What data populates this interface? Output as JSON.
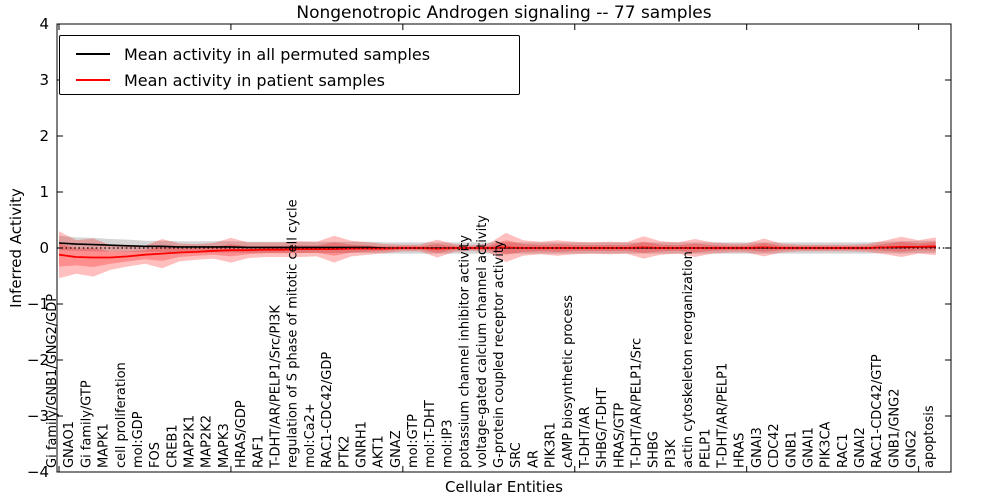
{
  "chart_data": {
    "type": "line",
    "title": "Nongenotropic Androgen signaling -- 77 samples",
    "xlabel": "Cellular Entities",
    "ylabel": "Inferred Activity",
    "ylim": [
      -4,
      4
    ],
    "ytick_labels": [
      "4",
      "3",
      "2",
      "1",
      "0",
      "−1",
      "−2",
      "−3",
      "−4"
    ],
    "ytick_values": [
      4,
      3,
      2,
      1,
      0,
      -1,
      -2,
      -3,
      -4
    ],
    "xtick_units": [
      0,
      10,
      20,
      30,
      40,
      50
    ],
    "grid": false,
    "legend_position": "upper left",
    "zero_line_style": "dotted",
    "categories": [
      "Gi family/GNB1/GNG2/GDP",
      "GNAO1",
      "Gi family/GTP",
      "MAPK1",
      "cell proliferation",
      "mol:GDP",
      "FOS",
      "CREB1",
      "MAP2K1",
      "MAP2K2",
      "MAPK3",
      "HRAS/GDP",
      "RAF1",
      "T-DHT/AR/PELP1/Src/PI3K",
      "regulation of S phase of mitotic cell cycle",
      "mol:Ca2+",
      "RAC1-CDC42/GDP",
      "PTK2",
      "GNRH1",
      "AKT1",
      "GNAZ",
      "mol:GTP",
      "mol:T-DHT",
      "mol:IP3",
      "potassium channel inhibitor activity",
      "voltage-gated calcium channel activity",
      "G-protein coupled receptor activity",
      "SRC",
      "AR",
      "PIK3R1",
      "cAMP biosynthetic process",
      "T-DHT/AR",
      "SHBG/T-DHT",
      "HRAS/GTP",
      "T-DHT/AR/PELP1/Src",
      "SHBG",
      "PI3K",
      "actin cytoskeleton reorganization",
      "PELP1",
      "T-DHT/AR/PELP1",
      "HRAS",
      "GNAI3",
      "CDC42",
      "GNB1",
      "GNAI1",
      "PIK3CA",
      "RAC1",
      "GNAI2",
      "RAC1-CDC42/GTP",
      "GNB1/GNG2",
      "GNG2",
      "apoptosis"
    ],
    "series": [
      {
        "name": "Mean activity in all permuted samples",
        "color": "#000000",
        "band_color": "#888888",
        "band_opacity": 0.35,
        "values": [
          0.09,
          0.07,
          0.06,
          0.05,
          0.04,
          0.03,
          0.03,
          0.02,
          0.02,
          0.02,
          0.02,
          0.01,
          0.01,
          0.01,
          0.01,
          0.01,
          0.01,
          0.01,
          0.01,
          0.0,
          0.0,
          0.0,
          0.0,
          0.0,
          0.0,
          0.0,
          0.0,
          0.0,
          0.0,
          0.0,
          0.0,
          0.0,
          0.0,
          0.0,
          0.0,
          0.0,
          0.0,
          0.0,
          0.0,
          0.0,
          0.0,
          0.0,
          0.0,
          0.0,
          0.0,
          0.0,
          0.0,
          0.0,
          0.01,
          0.01,
          0.02,
          0.02
        ],
        "band": [
          0.13,
          0.12,
          0.12,
          0.11,
          0.11,
          0.1,
          0.1,
          0.1,
          0.1,
          0.1,
          0.1,
          0.1,
          0.1,
          0.1,
          0.1,
          0.1,
          0.1,
          0.1,
          0.1,
          0.1,
          0.1,
          0.1,
          0.1,
          0.1,
          0.1,
          0.1,
          0.1,
          0.1,
          0.1,
          0.1,
          0.1,
          0.1,
          0.1,
          0.1,
          0.1,
          0.1,
          0.1,
          0.1,
          0.1,
          0.1,
          0.1,
          0.1,
          0.1,
          0.1,
          0.1,
          0.1,
          0.1,
          0.1,
          0.1,
          0.11,
          0.11,
          0.11
        ]
      },
      {
        "name": "Mean activity in patient samples",
        "color": "#ff0000",
        "band_color": "#ff0000",
        "band_opacity": 0.25,
        "band_inner_ratio": 0.5,
        "values": [
          -0.12,
          -0.16,
          -0.17,
          -0.17,
          -0.15,
          -0.12,
          -0.1,
          -0.08,
          -0.07,
          -0.05,
          -0.04,
          -0.04,
          -0.03,
          -0.03,
          -0.02,
          -0.02,
          -0.02,
          -0.01,
          -0.01,
          -0.01,
          0.0,
          0.0,
          -0.01,
          0.0,
          0.0,
          0.0,
          0.01,
          0.0,
          0.0,
          0.0,
          0.0,
          0.0,
          0.0,
          0.0,
          0.01,
          0.0,
          0.0,
          0.0,
          0.0,
          0.0,
          0.0,
          0.01,
          0.0,
          0.0,
          0.0,
          0.0,
          0.0,
          0.0,
          0.01,
          0.02,
          0.02,
          0.03
        ],
        "band": [
          0.42,
          0.3,
          0.34,
          0.22,
          0.18,
          0.16,
          0.26,
          0.16,
          0.14,
          0.14,
          0.22,
          0.14,
          0.13,
          0.13,
          0.14,
          0.13,
          0.24,
          0.14,
          0.11,
          0.08,
          0.06,
          0.06,
          0.16,
          0.07,
          0.05,
          0.08,
          0.26,
          0.14,
          0.11,
          0.14,
          0.11,
          0.1,
          0.11,
          0.1,
          0.2,
          0.12,
          0.1,
          0.16,
          0.1,
          0.08,
          0.08,
          0.16,
          0.08,
          0.06,
          0.06,
          0.06,
          0.06,
          0.07,
          0.12,
          0.18,
          0.12,
          0.16
        ]
      }
    ]
  },
  "legend": {
    "entries": [
      {
        "label": "Mean activity in all permuted samples"
      },
      {
        "label": "Mean activity in patient samples"
      }
    ]
  }
}
